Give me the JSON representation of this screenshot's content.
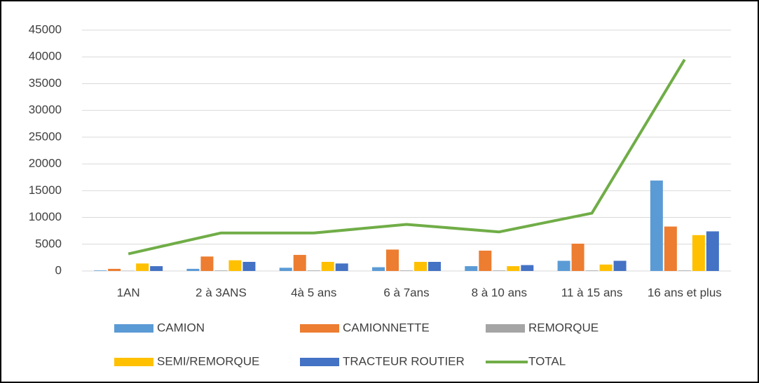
{
  "chart_data": {
    "type": "bar_line",
    "categories": [
      "1AN",
      "2 à 3ANS",
      "4à 5 ans",
      "6 à 7ans",
      "8 à 10 ans",
      "11 à 15 ans",
      "16 ans et plus"
    ],
    "series": [
      {
        "name": "CAMION",
        "color": "#5b9bd5",
        "type": "bar",
        "values": [
          100,
          400,
          600,
          700,
          900,
          1900,
          16900
        ]
      },
      {
        "name": "CAMIONNETTE",
        "color": "#ed7d31",
        "type": "bar",
        "values": [
          400,
          2700,
          3000,
          4000,
          3800,
          5100,
          8300
        ]
      },
      {
        "name": "REMORQUE",
        "color": "#a5a5a5",
        "type": "bar",
        "values": [
          50,
          100,
          100,
          100,
          100,
          100,
          100
        ]
      },
      {
        "name": "SEMI/REMORQUE",
        "color": "#ffc000",
        "type": "bar",
        "values": [
          1400,
          2000,
          1700,
          1700,
          900,
          1200,
          6700
        ]
      },
      {
        "name": "TRACTEUR ROUTIER",
        "color": "#4472c4",
        "type": "bar",
        "values": [
          900,
          1700,
          1400,
          1700,
          1100,
          1900,
          7400
        ]
      },
      {
        "name": "TOTAL",
        "color": "#70ad47",
        "type": "line",
        "values": [
          3200,
          7100,
          7100,
          8700,
          7300,
          10800,
          39500
        ]
      }
    ],
    "ylim": [
      0,
      45000
    ],
    "yticks": [
      0,
      5000,
      10000,
      15000,
      20000,
      25000,
      30000,
      35000,
      40000,
      45000
    ],
    "grid": true,
    "legend": "bottom"
  }
}
